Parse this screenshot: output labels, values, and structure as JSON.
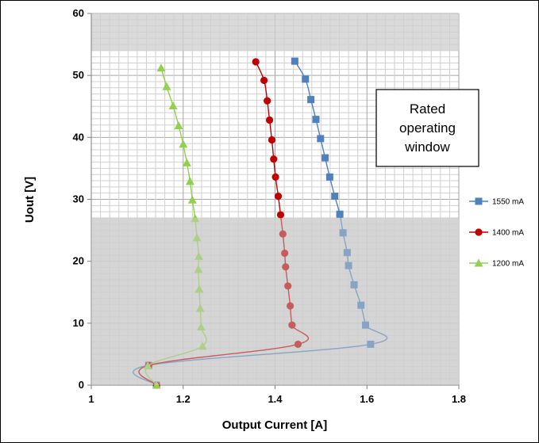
{
  "chart_data": {
    "type": "scatter",
    "xlabel": "Output Current [A]",
    "ylabel": "Uout [V]",
    "xlim": [
      1,
      1.8
    ],
    "ylim": [
      0,
      60
    ],
    "x_ticks": [
      "1",
      "1.2",
      "1.4",
      "1.6",
      "1.8"
    ],
    "y_ticks": [
      "0",
      "10",
      "20",
      "30",
      "40",
      "50",
      "60"
    ],
    "grid": true,
    "legend_position": "right",
    "shaded_regions": [
      {
        "y_from": 0,
        "y_to": 27,
        "color": "#cfcfcf"
      },
      {
        "y_from": 54,
        "y_to": 60,
        "color": "#cfcfcf"
      }
    ],
    "annotation": {
      "text_lines": [
        "Rated",
        "operating",
        "window"
      ]
    },
    "series": [
      {
        "name": "1550 mA",
        "color": "#4f81bd",
        "marker": "square",
        "x": [
          1.443,
          1.466,
          1.478,
          1.489,
          1.499,
          1.509,
          1.519,
          1.53,
          1.541,
          1.548,
          1.557,
          1.56,
          1.572,
          1.587,
          1.597,
          1.608,
          1.125,
          1.142
        ],
        "y": [
          52.3,
          49.4,
          46.1,
          42.9,
          39.8,
          36.7,
          33.6,
          30.5,
          27.6,
          24.6,
          21.4,
          19.3,
          16.2,
          12.9,
          9.7,
          6.6,
          3.2,
          0
        ]
      },
      {
        "name": "1400 mA",
        "color": "#c00000",
        "marker": "circle",
        "x": [
          1.358,
          1.376,
          1.383,
          1.388,
          1.393,
          1.397,
          1.401,
          1.407,
          1.412,
          1.417,
          1.421,
          1.423,
          1.428,
          1.433,
          1.437,
          1.45,
          1.125,
          1.142
        ],
        "y": [
          52.2,
          49.2,
          45.9,
          42.8,
          39.6,
          36.5,
          33.6,
          30.5,
          27.5,
          24.4,
          21.3,
          19.1,
          16.0,
          12.8,
          9.7,
          6.6,
          3.2,
          0
        ]
      },
      {
        "name": "1200 mA",
        "color": "#92d050",
        "marker": "triangle",
        "x": [
          1.152,
          1.164,
          1.178,
          1.19,
          1.2,
          1.208,
          1.215,
          1.22,
          1.226,
          1.23,
          1.234,
          1.233,
          1.235,
          1.237,
          1.239,
          1.242,
          1.123,
          1.142
        ],
        "y": [
          51.2,
          48.2,
          45.1,
          41.9,
          38.9,
          35.9,
          32.9,
          29.9,
          26.9,
          23.8,
          20.8,
          18.7,
          15.5,
          12.4,
          9.4,
          6.3,
          3.1,
          0
        ]
      }
    ]
  }
}
